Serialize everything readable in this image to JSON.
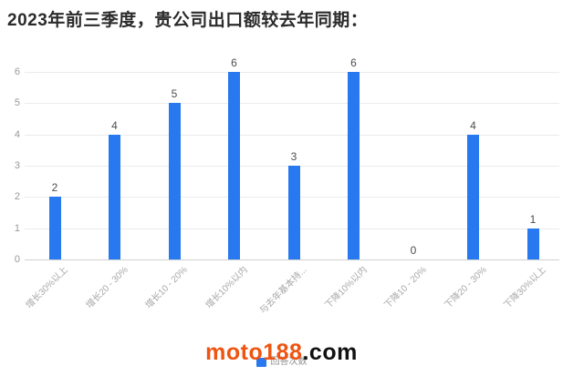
{
  "title": "2023年前三季度，贵公司出口额较去年同期：",
  "chart_data": {
    "type": "bar",
    "title": "2023年前三季度，贵公司出口额较去年同期：",
    "categories": [
      "增长30%以上",
      "增长20 - 30%",
      "增长10 - 20%",
      "增长10%以内",
      "与去年基本持...",
      "下降10%以内",
      "下降10 - 20%",
      "下降20 - 30%",
      "下降30%以上"
    ],
    "series": [
      {
        "name": "回答次数",
        "values": [
          2,
          4,
          5,
          6,
          3,
          6,
          0,
          4,
          1
        ]
      }
    ],
    "xlabel": "",
    "ylabel": "",
    "ylim": [
      0,
      6
    ],
    "y_ticks": [
      0,
      1,
      2,
      3,
      4,
      5,
      6
    ],
    "grid": true,
    "legend_position": "bottom",
    "bar_color": "#2878f0",
    "value_label_color": "#4d4d4d",
    "tick_label_color": "#999999"
  },
  "legend": {
    "label": "回答次数",
    "swatch_color": "#2878f0"
  },
  "watermark": {
    "name": "moto188",
    "suffix": ".com"
  }
}
